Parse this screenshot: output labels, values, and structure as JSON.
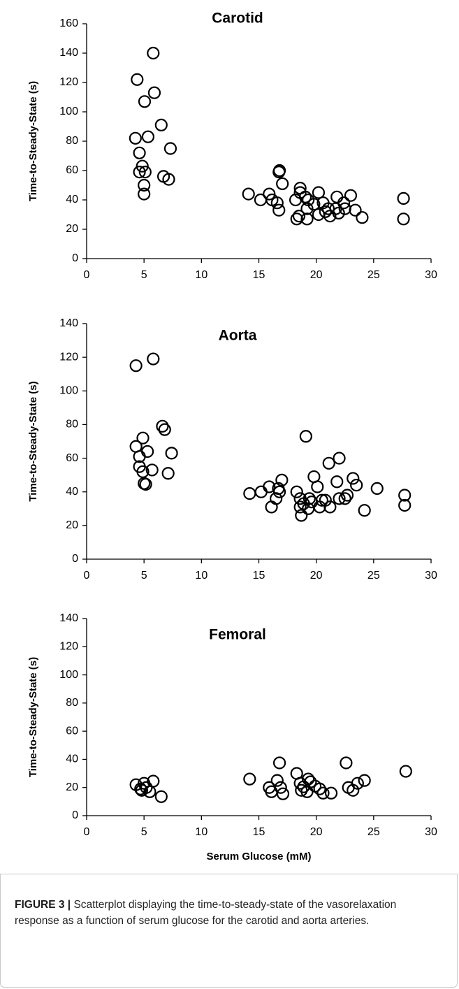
{
  "chart_data": [
    {
      "type": "scatter",
      "title": "Carotid",
      "ylabel": "Time-to-Steady-State (s)",
      "marker": "circle",
      "color": "#000000",
      "x": [
        5.8,
        4.4,
        5.9,
        5.05,
        6.5,
        4.25,
        5.35,
        4.6,
        7.3,
        4.85,
        5.1,
        4.6,
        6.7,
        7.15,
        5.0,
        5.0,
        14.1,
        15.15,
        15.9,
        16.15,
        16.6,
        16.75,
        16.75,
        16.8,
        17.05,
        18.2,
        18.3,
        18.5,
        18.6,
        18.6,
        19.05,
        19.3,
        19.2,
        19.2,
        19.8,
        20.2,
        20.2,
        20.6,
        20.8,
        21.05,
        21.2,
        21.7,
        21.8,
        21.95,
        22.4,
        22.5,
        23.0,
        23.4,
        24.0,
        27.6,
        27.6
      ],
      "values": [
        140,
        122,
        113,
        107,
        91,
        82,
        83,
        72,
        75,
        63,
        59,
        59,
        56,
        54,
        50,
        44,
        44,
        40,
        44,
        40,
        38,
        33,
        59,
        60,
        51,
        40,
        27,
        29,
        48,
        45,
        42,
        40,
        34,
        27,
        37,
        45,
        30,
        38,
        32,
        34,
        29,
        34,
        42,
        31,
        38,
        34,
        43,
        33,
        28,
        41,
        27
      ],
      "xlim": [
        0,
        30
      ],
      "xticks": [
        0,
        5,
        10,
        15,
        20,
        25,
        30
      ],
      "ylim": [
        0,
        160
      ],
      "yticks": [
        0,
        20,
        40,
        60,
        80,
        100,
        120,
        140,
        160
      ],
      "grid": false
    },
    {
      "type": "scatter",
      "title": "Aorta",
      "ylabel": "Time-to-Steady-State (s)",
      "marker": "circle",
      "color": "#000000",
      "x": [
        4.3,
        5.8,
        6.6,
        6.8,
        4.9,
        4.3,
        4.6,
        5.3,
        7.4,
        4.6,
        4.9,
        5.7,
        5.0,
        5.15,
        7.1,
        14.2,
        15.2,
        15.9,
        16.1,
        16.5,
        16.7,
        16.8,
        17.0,
        18.3,
        18.6,
        18.6,
        18.7,
        18.9,
        19.1,
        19.3,
        19.4,
        19.6,
        19.8,
        20.1,
        20.3,
        20.5,
        20.8,
        21.1,
        21.2,
        21.8,
        22.0,
        22.0,
        22.5,
        22.7,
        23.2,
        23.5,
        24.2,
        25.3,
        27.7,
        27.7
      ],
      "values": [
        115,
        119,
        79,
        77,
        72,
        67,
        61,
        64,
        63,
        55,
        52,
        53,
        45,
        44.5,
        51,
        39,
        40,
        43,
        31,
        36,
        42,
        40,
        47,
        40,
        36,
        31,
        26,
        33,
        73,
        30,
        36,
        34,
        49,
        43,
        31,
        35,
        35,
        57,
        31,
        46,
        60,
        36,
        36,
        38,
        48,
        44,
        29,
        42,
        38,
        32
      ],
      "xlim": [
        0,
        30
      ],
      "xticks": [
        0,
        5,
        10,
        15,
        20,
        25,
        30
      ],
      "ylim": [
        0,
        140
      ],
      "yticks": [
        0,
        20,
        40,
        60,
        80,
        100,
        120,
        140
      ],
      "grid": false
    },
    {
      "type": "scatter",
      "title": "Femoral",
      "ylabel": "Time-to-Steady-State (s)",
      "xlabel": "Serum Glucose (mM)",
      "marker": "circle",
      "color": "#000000",
      "x": [
        4.3,
        4.7,
        5.0,
        5.2,
        5.5,
        5.8,
        6.5,
        4.8,
        14.2,
        15.9,
        16.1,
        16.6,
        16.8,
        16.9,
        17.1,
        18.3,
        18.6,
        18.7,
        18.9,
        19.2,
        19.3,
        19.5,
        19.9,
        20.3,
        20.6,
        21.3,
        22.6,
        22.8,
        23.2,
        23.6,
        24.2,
        27.8
      ],
      "values": [
        22,
        19,
        23,
        20,
        17,
        24.5,
        13.5,
        18,
        26,
        20,
        17,
        25,
        37.5,
        20,
        15.5,
        30,
        23,
        18,
        20.5,
        17,
        26,
        24,
        21,
        19,
        16,
        16,
        37.5,
        20,
        18,
        23,
        25,
        31.5
      ],
      "xlim": [
        0,
        30
      ],
      "xticks": [
        0,
        5,
        10,
        15,
        20,
        25,
        30
      ],
      "ylim": [
        0,
        140
      ],
      "yticks": [
        0,
        20,
        40,
        60,
        80,
        100,
        120,
        140
      ],
      "grid": false
    }
  ],
  "caption": {
    "label": "FIGURE 3 |",
    "text": "Scatterplot displaying the time-to-steady-state of the vasorelaxation response as a function of serum glucose for the carotid and aorta arteries."
  }
}
